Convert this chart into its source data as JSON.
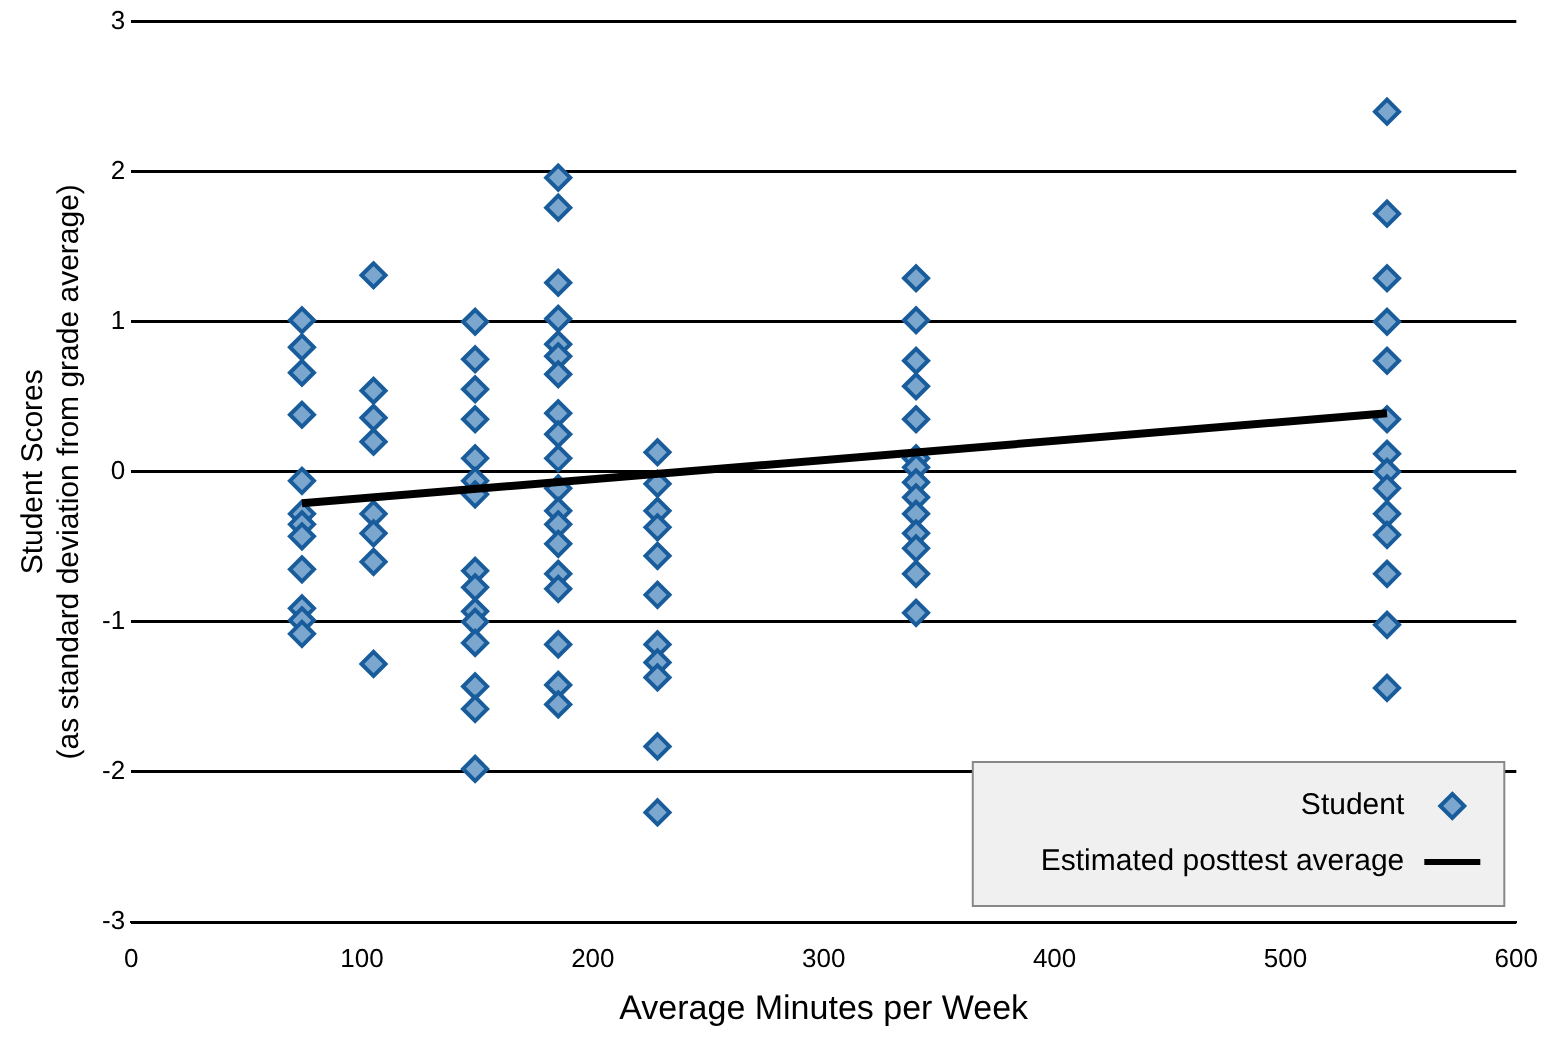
{
  "chart_data": {
    "type": "scatter",
    "xlabel": "Average Minutes per Week",
    "ylabel": "Student Scores\n(as standard deviation from grade average)",
    "xlim": [
      0,
      600
    ],
    "xticks": [
      0,
      100,
      200,
      300,
      400,
      500,
      600
    ],
    "ylim": [
      -3,
      3
    ],
    "yticks": [
      -3,
      -2,
      -1,
      0,
      1,
      2,
      3
    ],
    "grid": "y",
    "legend": "bottom right",
    "series": [
      {
        "name": "Student",
        "marker": "diamond",
        "color": "#7ba7cf",
        "x": [
          74,
          74,
          74,
          74,
          74,
          74,
          74,
          74,
          74,
          74,
          74,
          74,
          105,
          105,
          105,
          105,
          105,
          105,
          105,
          105,
          149,
          149,
          149,
          149,
          149,
          149,
          149,
          149,
          149,
          149,
          149,
          149,
          149,
          149,
          149,
          185,
          185,
          185,
          185,
          185,
          185,
          185,
          185,
          185,
          185,
          185,
          185,
          185,
          185,
          185,
          185,
          185,
          185,
          185,
          228,
          228,
          228,
          228,
          228,
          228,
          228,
          228,
          228,
          228,
          228,
          340,
          340,
          340,
          340,
          340,
          340,
          340,
          340,
          340,
          340,
          340,
          340,
          340,
          340,
          544,
          544,
          544,
          544,
          544,
          544,
          544,
          544,
          544,
          544,
          544,
          544,
          544,
          544
        ],
        "values": [
          1.01,
          0.83,
          0.66,
          0.38,
          -0.06,
          -0.28,
          -0.35,
          -0.43,
          -0.65,
          -0.91,
          -0.99,
          -1.08,
          1.31,
          0.54,
          0.36,
          0.2,
          -0.28,
          -0.41,
          -0.6,
          -1.28,
          1.0,
          0.75,
          0.55,
          0.35,
          0.09,
          -0.06,
          -0.15,
          -0.66,
          -0.77,
          -0.93,
          -1.0,
          -1.14,
          -1.43,
          -1.58,
          -1.98,
          1.96,
          1.76,
          1.26,
          1.02,
          0.85,
          0.77,
          0.65,
          0.39,
          0.25,
          0.09,
          -0.11,
          -0.26,
          -0.35,
          -0.48,
          -0.68,
          -0.78,
          -1.15,
          -1.42,
          -1.55,
          0.13,
          -0.08,
          -0.26,
          -0.37,
          -0.56,
          -0.82,
          -1.15,
          -1.27,
          -1.37,
          -1.83,
          -2.27,
          1.29,
          1.01,
          0.74,
          0.57,
          0.35,
          0.09,
          0.03,
          -0.07,
          -0.17,
          -0.28,
          -0.41,
          -0.51,
          -0.68,
          -0.94,
          2.4,
          1.72,
          1.29,
          1.0,
          0.74,
          0.35,
          0.12,
          0.0,
          -0.11,
          -0.28,
          -0.42,
          -0.68,
          -1.02,
          -1.44
        ]
      },
      {
        "name": "Estimated posttest average",
        "type": "line",
        "marker": "none",
        "color": "#000000",
        "x": [
          74,
          544
        ],
        "values": [
          -0.21,
          0.39
        ]
      }
    ]
  }
}
